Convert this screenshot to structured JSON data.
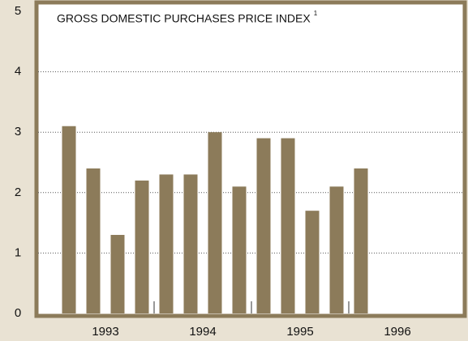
{
  "chart_data": {
    "type": "bar",
    "title": "GROSS DOMESTIC PURCHASES PRICE INDEX",
    "title_note": "1",
    "categories": [
      null,
      null,
      null,
      null,
      null,
      null,
      null,
      null,
      null,
      null,
      null,
      null,
      null
    ],
    "values": [
      3.1,
      2.4,
      1.3,
      2.2,
      2.3,
      2.3,
      3.0,
      2.1,
      2.9,
      2.9,
      1.7,
      2.1,
      2.4
    ],
    "year_labels": [
      "1993",
      "1994",
      "1995",
      "1996"
    ],
    "color": "#8c7b5a",
    "ylim": [
      0,
      5
    ],
    "yticks": [
      0,
      1,
      2,
      3,
      4,
      5
    ],
    "grid": true
  }
}
